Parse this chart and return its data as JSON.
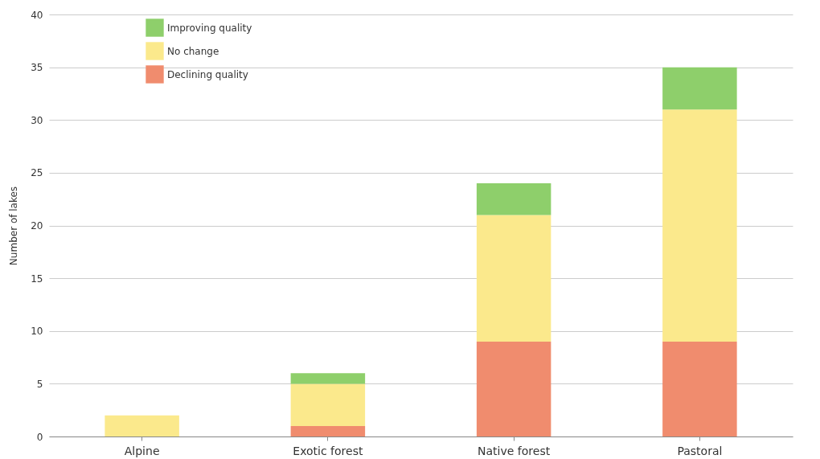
{
  "chart_data": {
    "type": "bar",
    "stacked": true,
    "ylabel": "Number of lakes",
    "categories": [
      "Alpine",
      "Exotic forest",
      "Native forest",
      "Pastoral"
    ],
    "series": [
      {
        "name": "Declining quality",
        "color": "#f08c6e",
        "values": [
          0,
          1,
          9,
          9
        ]
      },
      {
        "name": "No change",
        "color": "#fbe98c",
        "values": [
          2,
          4,
          12,
          22
        ]
      },
      {
        "name": "Improving quality",
        "color": "#8ecf6b",
        "values": [
          0,
          1,
          3,
          4
        ]
      }
    ],
    "ylim": [
      0,
      40
    ],
    "yticks": [
      0,
      5,
      10,
      15,
      20,
      25,
      30,
      35,
      40
    ],
    "grid": "y",
    "legend": "top left"
  }
}
